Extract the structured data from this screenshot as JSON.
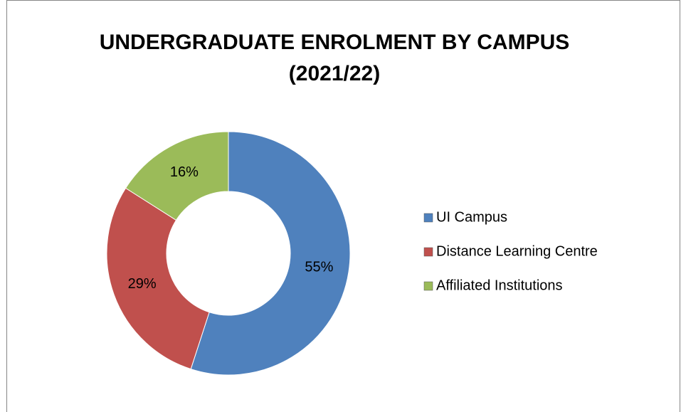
{
  "chart_data": {
    "type": "donut",
    "title": "UNDERGRADUATE ENROLMENT BY CAMPUS (2021/22)",
    "categories": [
      "UI Campus",
      "Distance Learning Centre",
      "Affiliated Institutions"
    ],
    "values": [
      55,
      29,
      16
    ],
    "value_labels": [
      "55%",
      "29%",
      "16%"
    ],
    "colors": [
      "#4f81bd",
      "#c0504d",
      "#9bbb59"
    ],
    "legend": "right"
  }
}
